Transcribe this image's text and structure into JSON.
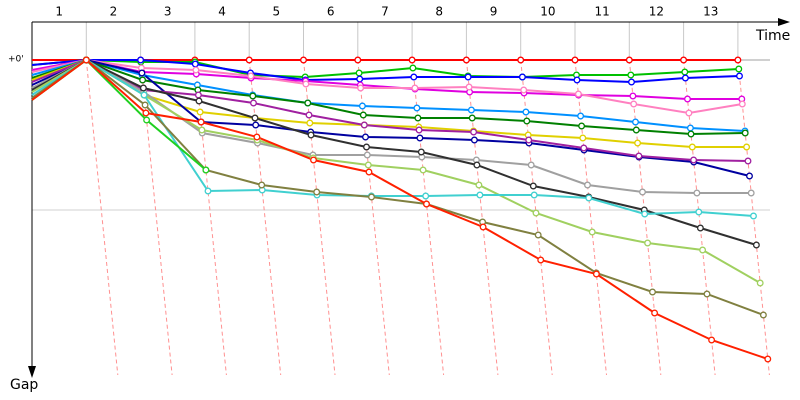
{
  "chart_data": {
    "type": "line",
    "x_label": "Time",
    "y_label": "Gap",
    "categories": [
      null,
      "1",
      "2",
      "3",
      "4",
      "5",
      "6",
      "7",
      "8",
      "9",
      "10",
      "11",
      "12",
      "13"
    ],
    "ylim": [
      0,
      315
    ],
    "yticks": [
      {
        "value": 0,
        "label": "+0'"
      }
    ],
    "ygrid": [
      150
    ],
    "series": [
      {
        "color": "#ff0000",
        "values": [
          0,
          0,
          0,
          0,
          0,
          0,
          0,
          0,
          0,
          0,
          0,
          0,
          0,
          0
        ]
      },
      {
        "color": "#00c000",
        "values": [
          5,
          0,
          2,
          2,
          15,
          17,
          13,
          8,
          16,
          17,
          15,
          15,
          12,
          9
        ]
      },
      {
        "color": "#0000ff",
        "values": [
          5,
          0,
          0,
          4,
          13,
          20,
          19,
          17,
          17,
          17,
          20,
          22,
          18,
          16
        ]
      },
      {
        "color": "#e000e0",
        "values": [
          10,
          0,
          12,
          14,
          18,
          21,
          25,
          29,
          32,
          33,
          35,
          36,
          39,
          39
        ]
      },
      {
        "color": "#ff80c0",
        "values": [
          12,
          0,
          8,
          10,
          16,
          24,
          28,
          28,
          27,
          30,
          34,
          44,
          53,
          44
        ]
      },
      {
        "color": "#0090ff",
        "values": [
          15,
          0,
          15,
          25,
          35,
          43,
          46,
          48,
          50,
          52,
          56,
          62,
          68,
          71
        ]
      },
      {
        "color": "#008000",
        "values": [
          18,
          0,
          20,
          30,
          36,
          43,
          55,
          58,
          58,
          61,
          66,
          70,
          74,
          73
        ]
      },
      {
        "color": "#e0d000",
        "values": [
          20,
          0,
          35,
          52,
          58,
          63,
          65,
          67,
          71,
          75,
          78,
          83,
          87,
          87
        ]
      },
      {
        "color": "#0000a0",
        "values": [
          25,
          0,
          13,
          62,
          65,
          72,
          77,
          78,
          80,
          83,
          90,
          97,
          102,
          116
        ]
      },
      {
        "color": "#a020a0",
        "values": [
          22,
          0,
          30,
          35,
          43,
          55,
          65,
          70,
          72,
          80,
          88,
          96,
          100,
          101
        ]
      },
      {
        "color": "#a0a0a0",
        "values": [
          28,
          0,
          32,
          73,
          83,
          95,
          95,
          97,
          100,
          105,
          125,
          132,
          133,
          133
        ]
      },
      {
        "color": "#303030",
        "values": [
          30,
          0,
          28,
          41,
          58,
          75,
          87,
          92,
          105,
          126,
          137,
          150,
          168,
          185
        ]
      },
      {
        "color": "#a0d060",
        "values": [
          32,
          0,
          35,
          70,
          80,
          98,
          105,
          110,
          125,
          153,
          172,
          183,
          190,
          223
        ]
      },
      {
        "color": "#40d0d0",
        "values": [
          35,
          0,
          35,
          131,
          130,
          135,
          136,
          136,
          135,
          135,
          138,
          154,
          152,
          156
        ]
      },
      {
        "color": "#808040",
        "values": [
          38,
          0,
          45,
          110,
          125,
          132,
          137,
          144,
          162,
          175,
          213,
          232,
          234,
          255
        ]
      },
      {
        "color": "#20d020",
        "values": [
          40,
          0,
          60,
          110,
          null,
          null,
          null,
          null,
          null,
          null,
          null,
          null,
          null,
          null
        ]
      },
      {
        "color": "#ff2000",
        "values": [
          40,
          0,
          53,
          62,
          77,
          100,
          112,
          144,
          167,
          200,
          214,
          253,
          280,
          299
        ]
      }
    ]
  }
}
